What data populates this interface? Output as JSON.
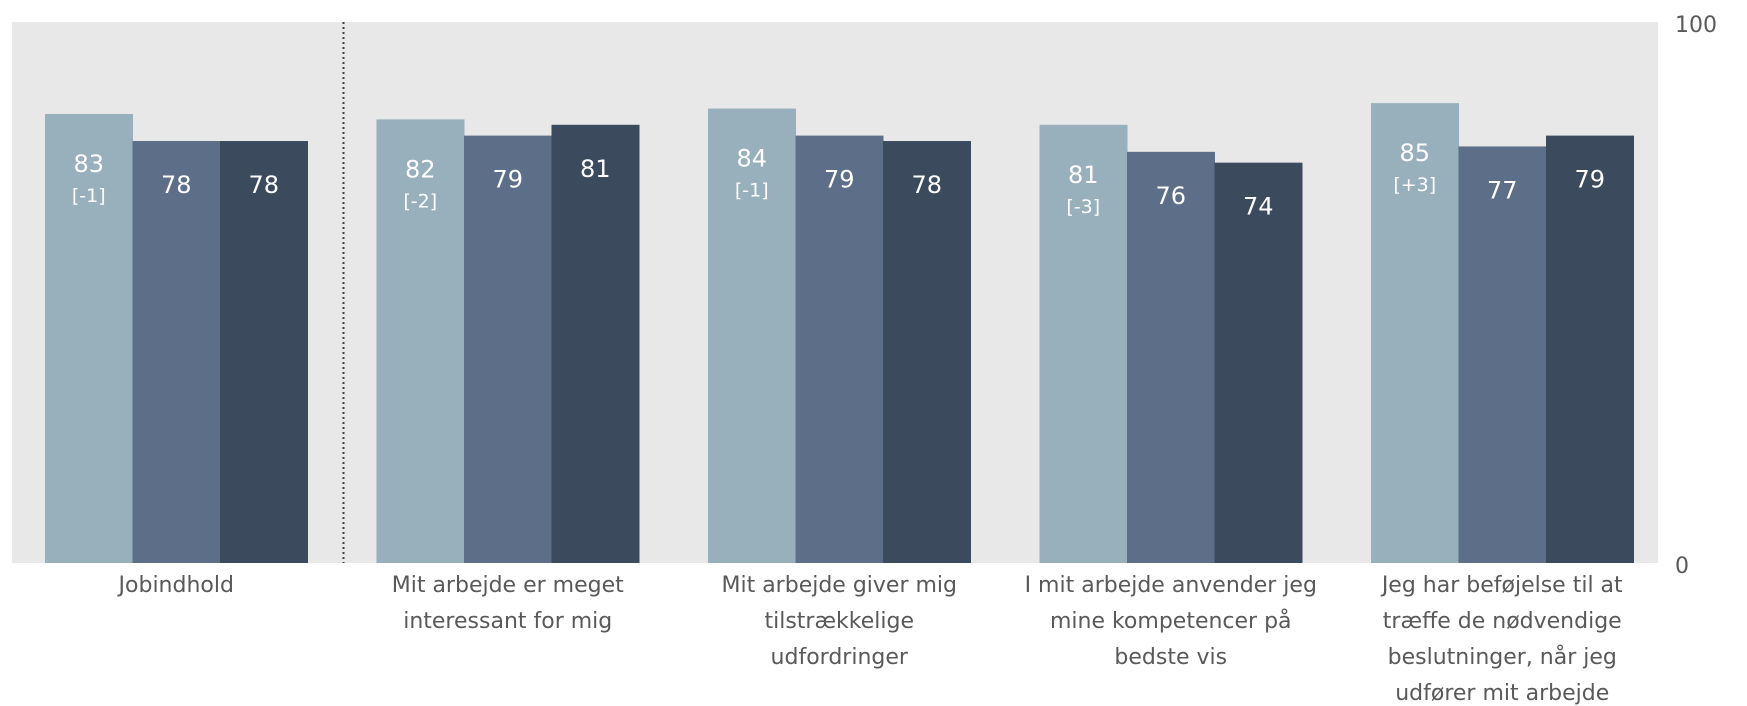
{
  "chart_data": {
    "type": "bar",
    "ylim": [
      0,
      100
    ],
    "yticks": [
      "0",
      "100"
    ],
    "grid": false,
    "background": "#e8e8e8",
    "series_colors": [
      "#98b0bc",
      "#5d6e89",
      "#3c4a5e"
    ],
    "divider_after_group": 0,
    "groups": [
      {
        "label_lines": [
          "Jobindhold"
        ],
        "values": [
          83,
          78,
          78
        ],
        "labels": [
          "83",
          "78",
          "78"
        ],
        "change": "[-1]"
      },
      {
        "label_lines": [
          "Mit arbejde er meget",
          "interessant for mig"
        ],
        "values": [
          82,
          79,
          81
        ],
        "labels": [
          "82",
          "79",
          "81"
        ],
        "change": "[-2]"
      },
      {
        "label_lines": [
          "Mit arbejde giver mig",
          "tilstrækkelige",
          "udfordringer"
        ],
        "values": [
          84,
          79,
          78
        ],
        "labels": [
          "84",
          "79",
          "78"
        ],
        "change": "[-1]"
      },
      {
        "label_lines": [
          "I mit arbejde anvender jeg",
          "mine kompetencer på",
          "bedste vis"
        ],
        "values": [
          81,
          76,
          74
        ],
        "labels": [
          "81",
          "76",
          "74"
        ],
        "change": "[-3]"
      },
      {
        "label_lines": [
          "Jeg har beføjelse til at",
          "træffe de nødvendige",
          "beslutninger, når jeg",
          "udfører mit arbejde"
        ],
        "values": [
          85,
          77,
          79
        ],
        "labels": [
          "85",
          "77",
          "79"
        ],
        "change": "[+3]"
      }
    ]
  }
}
